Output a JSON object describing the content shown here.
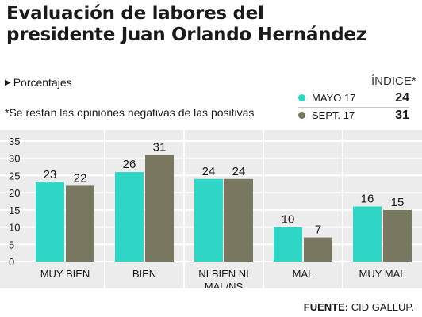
{
  "title_line1": "Evaluación de labores del",
  "title_line2": "presidente Juan Orlando Hernández",
  "subtitle": "Porcentajes",
  "triangle_icon": "right-triangle",
  "note": "*Se restan las opiniones negativas de las positivas",
  "index": {
    "title": "ÍNDICE*",
    "rows": [
      {
        "label": "MAYO 17",
        "value": "24",
        "color": "#2ed6c6"
      },
      {
        "label": "SEPT. 17",
        "value": "31",
        "color": "#787860"
      }
    ]
  },
  "source_label": "FUENTE:",
  "source_text": "CID GALLUP.",
  "chart_data": {
    "type": "bar",
    "categories": [
      [
        "MUY BIEN"
      ],
      [
        "BIEN"
      ],
      [
        "NI BIEN NI",
        "MAL/NS"
      ],
      [
        "MAL"
      ],
      [
        "MUY MAL"
      ]
    ],
    "series": [
      {
        "values": [
          23,
          26,
          24,
          10,
          16
        ],
        "color": "#2ed6c6"
      },
      {
        "values": [
          22,
          31,
          24,
          7,
          15
        ],
        "color": "#787860"
      }
    ],
    "ylim": [
      0,
      35
    ],
    "yticks": [
      0,
      5,
      10,
      15,
      20,
      25,
      30,
      35
    ],
    "grid": true,
    "background": "#ececec",
    "gridline_color": "#ffffff"
  }
}
